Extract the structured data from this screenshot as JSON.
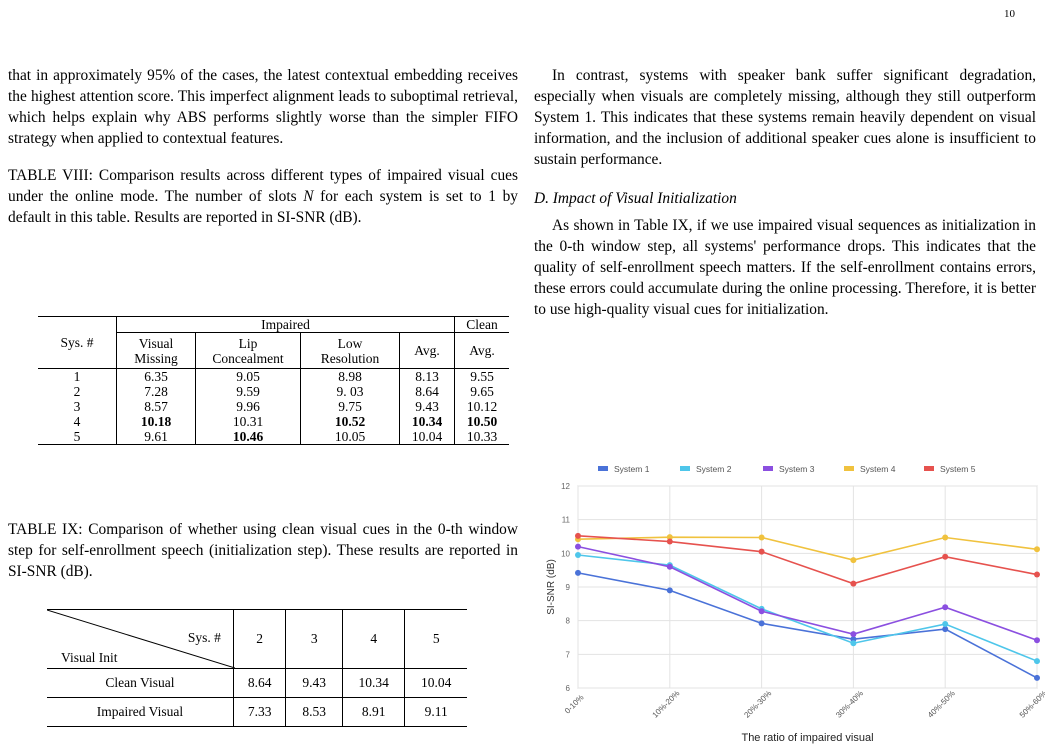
{
  "page_number": "10",
  "left_column": {
    "para1": "that in approximately 95% of the cases, the latest contextual embedding receives the highest attention score. This imperfect alignment leads to suboptimal retrieval, which helps explain why ABS performs slightly worse than the simpler FIFO strategy when applied to contextual features.",
    "caption8_pre": "TABLE VIII: Comparison results across different types of impaired visual cues under the online mode. The number of slots ",
    "caption8_var": "N",
    "caption8_post": " for each system is set to 1 by default in this table. Results are reported in SI-SNR (dB).",
    "caption9_pre": "TABLE IX: Comparison of whether using clean visual cues in the ",
    "caption9_num": "0",
    "caption9_post": "-th window step for self-enrollment speech (initialization step). These results are reported in SI-SNR (dB)."
  },
  "table8": {
    "sys_header": "Sys. #",
    "impaired_header": "Impaired",
    "clean_header": "Clean",
    "sub_visual1": "Visual",
    "sub_visual2": "Missing",
    "sub_lip1": "Lip",
    "sub_lip2": "Concealment",
    "sub_low1": "Low",
    "sub_low2": "Resolution",
    "sub_avg": "Avg.",
    "sub_clean_avg": "Avg.",
    "rows": [
      {
        "sys": "1",
        "vm": "6.35",
        "lc": "9.05",
        "lr": "8.98",
        "avg": "8.13",
        "clean": "9.55"
      },
      {
        "sys": "2",
        "vm": "7.28",
        "lc": "9.59",
        "lr": "9. 03",
        "avg": "8.64",
        "clean": "9.65"
      },
      {
        "sys": "3",
        "vm": "8.57",
        "lc": "9.96",
        "lr": "9.75",
        "avg": "9.43",
        "clean": "10.12"
      },
      {
        "sys": "4",
        "vm": "10.18",
        "lc": "10.31",
        "lr": "10.52",
        "avg": "10.34",
        "clean": "10.50"
      },
      {
        "sys": "5",
        "vm": "9.61",
        "lc": "10.46",
        "lr": "10.05",
        "avg": "10.04",
        "clean": "10.33"
      }
    ]
  },
  "table9": {
    "sys_label": "Sys. #",
    "init_label": "Visual Init",
    "cols": [
      "2",
      "3",
      "4",
      "5"
    ],
    "clean_label": "Clean Visual",
    "clean_vals": [
      "8.64",
      "9.43",
      "10.34",
      "10.04"
    ],
    "impaired_label": "Impaired Visual",
    "impaired_vals": [
      "7.33",
      "8.53",
      "8.91",
      "9.11"
    ]
  },
  "right_column": {
    "para1": "In contrast, systems with speaker bank suffer significant degradation, especially when visuals are completely missing, although they still outperform System 1. This indicates that these systems remain heavily dependent on visual information, and the inclusion of additional speaker cues alone is insufficient to sustain performance.",
    "section_title": "D. Impact of Visual Initialization",
    "para2_pre": "As shown in Table IX, if we use impaired visual sequences as initialization in the ",
    "para2_num": "0",
    "para2_post": "-th window step, all systems' performance drops. This indicates that the quality of self-enrollment speech matters. If the self-enrollment contains errors, these errors could accumulate during the online processing. Therefore, it is better to use high-quality visual cues for initialization."
  },
  "chart_data": {
    "type": "line",
    "categories": [
      "0-10%",
      "10%-20%",
      "20%-30%",
      "30%-40%",
      "40%-50%",
      "50%-60%"
    ],
    "xlabel": "The ratio of impaired visual",
    "ylabel": "SI-SNR (dB)",
    "ylim": [
      6,
      12
    ],
    "yticks": [
      "6",
      "7",
      "8",
      "9",
      "10",
      "11",
      "12"
    ],
    "grid": true,
    "legend_position": "top",
    "series": [
      {
        "name": "System 1",
        "color": "#4a72d8",
        "values": [
          9.42,
          8.9,
          7.92,
          7.45,
          7.75,
          6.3
        ]
      },
      {
        "name": "System 2",
        "color": "#4ec6ea",
        "values": [
          9.95,
          9.65,
          8.35,
          7.33,
          7.9,
          6.8
        ]
      },
      {
        "name": "System 3",
        "color": "#8b4fe0",
        "values": [
          10.2,
          9.6,
          8.28,
          7.6,
          8.4,
          7.42
        ]
      },
      {
        "name": "System 4",
        "color": "#f0c23e",
        "values": [
          10.42,
          10.48,
          10.47,
          9.8,
          10.47,
          10.12
        ]
      },
      {
        "name": "System 5",
        "color": "#e6524e",
        "values": [
          10.52,
          10.35,
          10.05,
          9.1,
          9.9,
          9.37
        ]
      }
    ]
  }
}
